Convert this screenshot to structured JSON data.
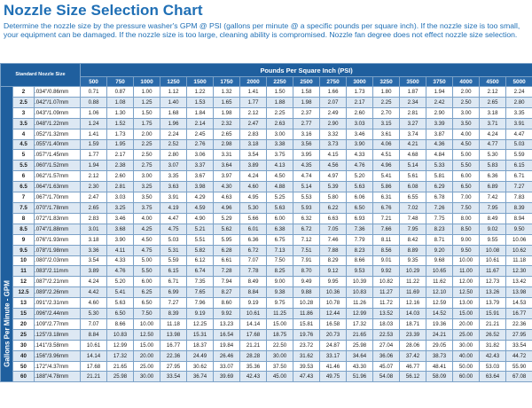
{
  "title": "Nozzle Size Selection Chart",
  "intro": "Determine the nozzle size by the pressure washer's GPM @ PSI (gallons per minute @ a specific pounds per square inch). If the nozzle size is too small, your equipment can be damaged. If the nozzle size is too large, cleaning ability is compromised. Nozzle fan degree does not effect nozzle size selection.",
  "table": {
    "corner_label": "Standard Nozzle Size",
    "psi_header": "Pounds Per Square Inch (PSI)",
    "side_label": "Gallons Per Minute - GPM",
    "psi": [
      "500",
      "750",
      "1000",
      "1250",
      "1500",
      "1750",
      "2000",
      "2250",
      "2500",
      "2750",
      "3000",
      "3250",
      "3500",
      "3750",
      "4000",
      "4500",
      "5000"
    ],
    "rows": [
      {
        "size": "2",
        "orifice": ".034\"/0.86mm",
        "values": [
          "0.71",
          "0.87",
          "1.00",
          "1.12",
          "1.22",
          "1.32",
          "1.41",
          "1.50",
          "1.58",
          "1.66",
          "1.73",
          "1.80",
          "1.87",
          "1.94",
          "2.00",
          "2.12",
          "2.24"
        ]
      },
      {
        "size": "2.5",
        "orifice": ".042\"/1.07mm",
        "values": [
          "0.88",
          "1.08",
          "1.25",
          "1.40",
          "1.53",
          "1.65",
          "1.77",
          "1.88",
          "1.98",
          "2.07",
          "2.17",
          "2.25",
          "2.34",
          "2.42",
          "2.50",
          "2.65",
          "2.80"
        ]
      },
      {
        "size": "3",
        "orifice": ".043\"/1.09mm",
        "values": [
          "1.06",
          "1.30",
          "1.50",
          "1.68",
          "1.84",
          "1.98",
          "2.12",
          "2.25",
          "2.37",
          "2.49",
          "2.60",
          "2.70",
          "2.81",
          "2.90",
          "3.00",
          "3.18",
          "3.35"
        ]
      },
      {
        "size": "3.5",
        "orifice": ".048\"/1.22mm",
        "values": [
          "1.24",
          "1.52",
          "1.75",
          "1.96",
          "2.14",
          "2.32",
          "2.47",
          "2.63",
          "2.77",
          "2.90",
          "3.03",
          "3.15",
          "3.27",
          "3.39",
          "3.50",
          "3.71",
          "3.91"
        ]
      },
      {
        "size": "4",
        "orifice": ".052\"/1.32mm",
        "values": [
          "1.41",
          "1.73",
          "2.00",
          "2.24",
          "2.45",
          "2.65",
          "2.83",
          "3.00",
          "3.16",
          "3.32",
          "3.46",
          "3.61",
          "3.74",
          "3.87",
          "4.00",
          "4.24",
          "4.47"
        ]
      },
      {
        "size": "4.5",
        "orifice": ".055\"/1.40mm",
        "values": [
          "1.59",
          "1.95",
          "2.25",
          "2.52",
          "2.76",
          "2.98",
          "3.18",
          "3.38",
          "3.56",
          "3.73",
          "3.90",
          "4.06",
          "4.21",
          "4.36",
          "4.50",
          "4.77",
          "5.03"
        ]
      },
      {
        "size": "5",
        "orifice": ".057\"/1.45mm",
        "values": [
          "1.77",
          "2.17",
          "2.50",
          "2.80",
          "3.06",
          "3.31",
          "3.54",
          "3.75",
          "3.95",
          "4.15",
          "4.33",
          "4.51",
          "4.68",
          "4.84",
          "5.00",
          "5.30",
          "5.59"
        ]
      },
      {
        "size": "5.5",
        "orifice": ".060\"/1.52mm",
        "values": [
          "1.94",
          "2.38",
          "2.75",
          "3.07",
          "3.37",
          "3.64",
          "3.89",
          "4.13",
          "4.35",
          "4.56",
          "4.76",
          "4.96",
          "5.14",
          "5.33",
          "5.50",
          "5.83",
          "6.15"
        ]
      },
      {
        "size": "6",
        "orifice": ".062\"/1.57mm",
        "values": [
          "2.12",
          "2.60",
          "3.00",
          "3.35",
          "3.67",
          "3.97",
          "4.24",
          "4.50",
          "4.74",
          "4.97",
          "5.20",
          "5.41",
          "5.61",
          "5.81",
          "6.00",
          "6.36",
          "6.71"
        ]
      },
      {
        "size": "6.5",
        "orifice": ".064\"/1.63mm",
        "values": [
          "2.30",
          "2.81",
          "3.25",
          "3.63",
          "3.98",
          "4.30",
          "4.60",
          "4.88",
          "5.14",
          "5.39",
          "5.63",
          "5.86",
          "6.08",
          "6.29",
          "6.50",
          "6.89",
          "7.27"
        ]
      },
      {
        "size": "7",
        "orifice": ".067\"/1.70mm",
        "values": [
          "2.47",
          "3.03",
          "3.50",
          "3.91",
          "4.29",
          "4.63",
          "4.95",
          "5.25",
          "5.53",
          "5.80",
          "6.06",
          "6.31",
          "6.55",
          "6.78",
          "7.00",
          "7.42",
          "7.83"
        ]
      },
      {
        "size": "7.5",
        "orifice": ".070\"/1.78mm",
        "values": [
          "2.65",
          "3.25",
          "3.75",
          "4.19",
          "4.59",
          "4.96",
          "5.30",
          "5.63",
          "5.93",
          "6.22",
          "6.50",
          "6.76",
          "7.02",
          "7.26",
          "7.50",
          "7.95",
          "8.39"
        ]
      },
      {
        "size": "8",
        "orifice": ".072\"/1.83mm",
        "values": [
          "2.83",
          "3.46",
          "4.00",
          "4.47",
          "4.90",
          "5.29",
          "5.66",
          "6.00",
          "6.32",
          "6.63",
          "6.93",
          "7.21",
          "7.48",
          "7.75",
          "8.00",
          "8.49",
          "8.94"
        ]
      },
      {
        "size": "8.5",
        "orifice": ".074\"/1.88mm",
        "values": [
          "3.01",
          "3.68",
          "4.25",
          "4.75",
          "5.21",
          "5.62",
          "6.01",
          "6.38",
          "6.72",
          "7.05",
          "7.36",
          "7.66",
          "7.95",
          "8.23",
          "8.50",
          "9.02",
          "9.50"
        ]
      },
      {
        "size": "9",
        "orifice": ".076\"/1.93mm",
        "values": [
          "3.18",
          "3.90",
          "4.50",
          "5.03",
          "5.51",
          "5.95",
          "6.36",
          "6.75",
          "7.12",
          "7.46",
          "7.79",
          "8.11",
          "8.42",
          "8.71",
          "9.00",
          "9.55",
          "10.06"
        ]
      },
      {
        "size": "9.5",
        "orifice": ".078\"/1.98mm",
        "values": [
          "3.36",
          "4.11",
          "4.75",
          "5.31",
          "5.82",
          "6.28",
          "6.72",
          "7.13",
          "7.51",
          "7.88",
          "8.23",
          "8.56",
          "8.89",
          "9.20",
          "9.50",
          "10.08",
          "10.62"
        ]
      },
      {
        "size": "10",
        "orifice": ".080\"/2.03mm",
        "values": [
          "3.54",
          "4.33",
          "5.00",
          "5.59",
          "6.12",
          "6.61",
          "7.07",
          "7.50",
          "7.91",
          "8.29",
          "8.66",
          "9.01",
          "9.35",
          "9.68",
          "10.00",
          "10.61",
          "11.18"
        ]
      },
      {
        "size": "11",
        "orifice": ".083\"/2.11mm",
        "values": [
          "3.89",
          "4.76",
          "5.50",
          "6.15",
          "6.74",
          "7.28",
          "7.78",
          "8.25",
          "8.70",
          "9.12",
          "9.53",
          "9.92",
          "10.29",
          "10.65",
          "11.00",
          "11.67",
          "12.30"
        ]
      },
      {
        "size": "12",
        "orifice": ".087\"/2.21mm",
        "values": [
          "4.24",
          "5.20",
          "6.00",
          "6.71",
          "7.35",
          "7.94",
          "8.49",
          "9.00",
          "9.49",
          "9.95",
          "10.39",
          "10.82",
          "11.22",
          "11.62",
          "12.00",
          "12.73",
          "13.42"
        ]
      },
      {
        "size": "12.5",
        "orifice": ".089\"/2.26mm",
        "values": [
          "4.42",
          "5.41",
          "6.25",
          "6.99",
          "7.65",
          "8.27",
          "8.84",
          "9.38",
          "9.88",
          "10.36",
          "10.83",
          "11.27",
          "11.69",
          "12.10",
          "12.50",
          "13.26",
          "13.98"
        ]
      },
      {
        "size": "13",
        "orifice": ".091\"/2.31mm",
        "values": [
          "4.60",
          "5.63",
          "6.50",
          "7.27",
          "7.96",
          "8.60",
          "9.19",
          "9.75",
          "10.28",
          "10.78",
          "11.26",
          "11.72",
          "12.16",
          "12.59",
          "13.00",
          "13.79",
          "14.53"
        ]
      },
      {
        "size": "15",
        "orifice": ".096\"/2.44mm",
        "values": [
          "5.30",
          "6.50",
          "7.50",
          "8.39",
          "9.19",
          "9.92",
          "10.61",
          "11.25",
          "11.86",
          "12.44",
          "12.99",
          "13.52",
          "14.03",
          "14.52",
          "15.00",
          "15.91",
          "16.77"
        ]
      },
      {
        "size": "20",
        "orifice": ".109\"/2.77mm",
        "values": [
          "7.07",
          "8.66",
          "10.00",
          "11.18",
          "12.25",
          "13.23",
          "14.14",
          "15.00",
          "15.81",
          "16.58",
          "17.32",
          "18.03",
          "18.71",
          "19.36",
          "20.00",
          "21.21",
          "22.36"
        ]
      },
      {
        "size": "25",
        "orifice": ".125\"/3.18mm",
        "values": [
          "8.84",
          "10.83",
          "12.50",
          "13.98",
          "15.31",
          "16.54",
          "17.68",
          "18.75",
          "19.76",
          "20.73",
          "21.65",
          "22.53",
          "23.39",
          "24.21",
          "25.00",
          "26.52",
          "27.95"
        ]
      },
      {
        "size": "30",
        "orifice": ".141\"/3.58mm",
        "values": [
          "10.61",
          "12.99",
          "15.00",
          "16.77",
          "18.37",
          "19.84",
          "21.21",
          "22.50",
          "23.72",
          "24.87",
          "25.98",
          "27.04",
          "28.06",
          "29.05",
          "30.00",
          "31.82",
          "33.54"
        ]
      },
      {
        "size": "40",
        "orifice": ".156\"/3.96mm",
        "values": [
          "14.14",
          "17.32",
          "20.00",
          "22.36",
          "24.49",
          "26.46",
          "28.28",
          "30.00",
          "31.62",
          "33.17",
          "34.64",
          "36.06",
          "37.42",
          "38.73",
          "40.00",
          "42.43",
          "44.72"
        ]
      },
      {
        "size": "50",
        "orifice": ".172\"/4.37mm",
        "values": [
          "17.68",
          "21.65",
          "25.00",
          "27.95",
          "30.62",
          "33.07",
          "35.36",
          "37.50",
          "39.53",
          "41.46",
          "43.30",
          "45.07",
          "46.77",
          "48.41",
          "50.00",
          "53.03",
          "55.90"
        ]
      },
      {
        "size": "60",
        "orifice": ".188\"/4.78mm",
        "values": [
          "21.21",
          "25.98",
          "30.00",
          "33.54",
          "36.74",
          "39.69",
          "42.43",
          "45.00",
          "47.43",
          "49.75",
          "51.96",
          "54.08",
          "56.12",
          "58.09",
          "60.00",
          "63.64",
          "67.08"
        ]
      }
    ]
  }
}
